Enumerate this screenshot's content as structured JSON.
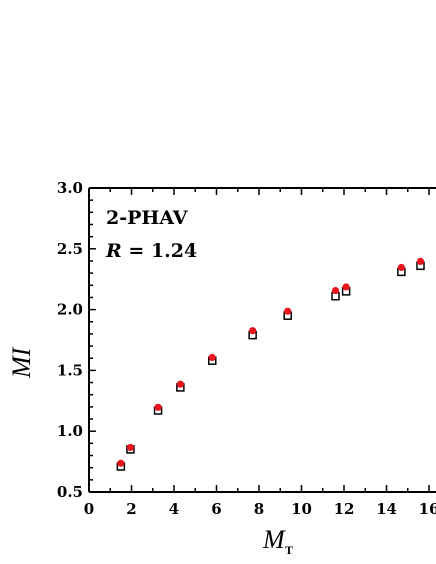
{
  "chart_data": {
    "type": "scatter",
    "xlabel": "M",
    "xlabel_sub": "T",
    "ylabel": "MI",
    "xlim": [
      0,
      16
    ],
    "ylim": [
      0.5,
      3.0
    ],
    "x_ticks": [
      "0",
      "2",
      "4",
      "6",
      "8",
      "10",
      "12",
      "14",
      "16"
    ],
    "y_ticks": [
      "0.5",
      "1.0",
      "1.5",
      "2.0",
      "2.5",
      "3.0"
    ],
    "grid": false,
    "annotations": {
      "line1": "2-PHAV",
      "line2_italic": "R",
      "line2_rest": " = 1.24"
    },
    "series": [
      {
        "color": "#000000",
        "marker": "square",
        "x": [
          1.5,
          1.95,
          3.25,
          4.3,
          5.8,
          7.7,
          9.35,
          11.6,
          12.1,
          14.7,
          15.6
        ],
        "y": [
          0.71,
          0.85,
          1.17,
          1.36,
          1.58,
          1.79,
          1.95,
          2.11,
          2.15,
          2.31,
          2.36
        ]
      },
      {
        "color": "#e8141e",
        "marker": "circle",
        "x": [
          1.5,
          1.95,
          3.25,
          4.3,
          5.8,
          7.7,
          9.35,
          11.6,
          12.1,
          14.7,
          15.6
        ],
        "y": [
          0.72,
          0.85,
          1.18,
          1.37,
          1.59,
          1.81,
          1.97,
          2.14,
          2.17,
          2.33,
          2.38
        ]
      }
    ]
  }
}
